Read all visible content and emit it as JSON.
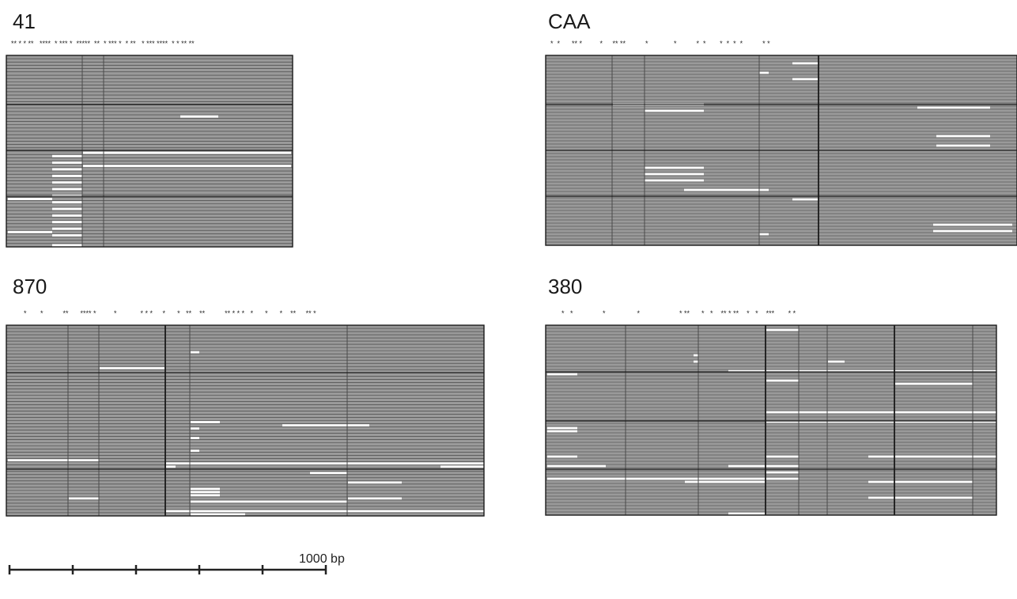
{
  "panels": [
    {
      "id": "41",
      "title": "41",
      "stars": "** * * **   ****  * *** *  *****  **  * *** *  * **   * *** ****  * * ** **"
    },
    {
      "id": "CAA",
      "title": "CAA",
      "stars": "*  *      ** *         *     ** **          *             *          *  *       *  *  *  *          * *"
    },
    {
      "id": "870",
      "title": "870",
      "stars": "*       *          **      **** *         *            * * *     *      *   **    **          ** * * *   *      *      *    **     ** *"
    },
    {
      "id": "380",
      "title": "380",
      "stars": "*   *               *                *                    * **      *   *    ** * **    *   *    ***       * *"
    }
  ],
  "scale_bar": {
    "label": "1000 bp",
    "ticks": 6
  },
  "colors": {
    "read": "#9a9a9a",
    "gap": "#ffffff",
    "border": "#1a1a1a",
    "divider": "#4a4a4a"
  }
}
